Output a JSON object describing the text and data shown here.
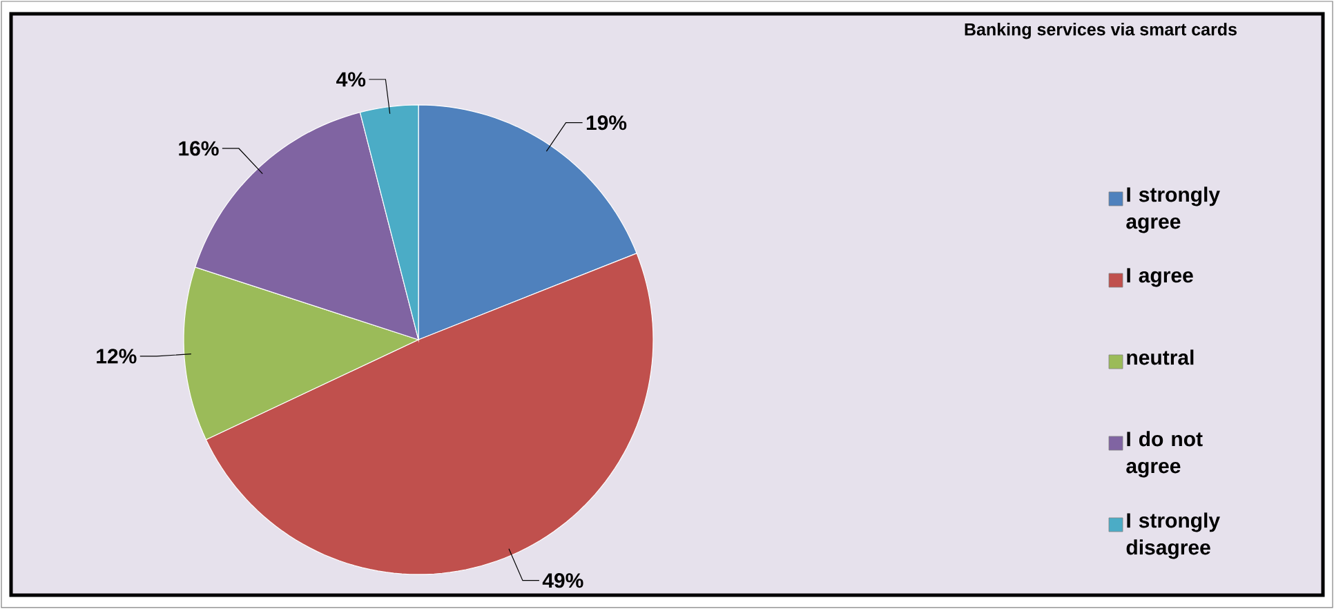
{
  "chart_data": {
    "type": "pie",
    "title": "Banking services via smart cards",
    "categories": [
      "I strongly agree",
      "I agree",
      "neutral",
      "I do not agree",
      "I strongly disagree"
    ],
    "values": [
      19,
      49,
      12,
      16,
      4
    ],
    "value_labels": [
      "19%",
      "49%",
      "12%",
      "16%",
      "4%"
    ],
    "colors": [
      "#4f81bd",
      "#c0504d",
      "#9bbb59",
      "#8064a2",
      "#4bacc6"
    ],
    "legend": "right"
  }
}
